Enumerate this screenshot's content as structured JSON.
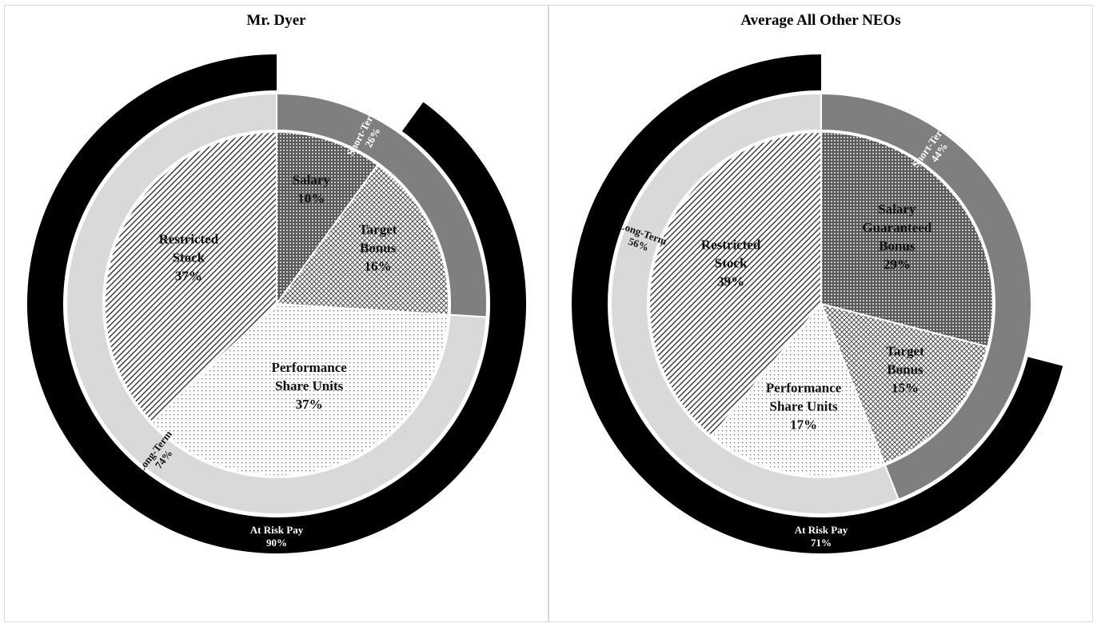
{
  "colors": {
    "at_risk": "#000000",
    "short_term": "#7f7f7f",
    "long_term": "#d9d9d9",
    "separator": "#ffffff"
  },
  "chart_data": [
    {
      "type": "pie",
      "title": "Mr. Dyer",
      "slices": [
        {
          "label_lines": [
            "Salary",
            "10%"
          ],
          "value": 10,
          "pattern": "dense-dots"
        },
        {
          "label_lines": [
            "Target",
            "Bonus",
            "16%"
          ],
          "value": 16,
          "pattern": "crosshatch"
        },
        {
          "label_lines": [
            "Performance",
            "Share Units",
            "37%"
          ],
          "value": 37,
          "pattern": "light-dots"
        },
        {
          "label_lines": [
            "Restricted",
            "Stock",
            "37%"
          ],
          "value": 37,
          "pattern": "diagonal"
        }
      ],
      "rings": [
        {
          "label_lines": [
            "Short-Term",
            "26%"
          ],
          "value": 26,
          "group": "short_term"
        },
        {
          "label_lines": [
            "Long-Term",
            "74%"
          ],
          "value": 74,
          "group": "long_term"
        }
      ],
      "at_risk": {
        "label_lines": [
          "At Risk Pay",
          "90%"
        ],
        "value": 90
      }
    },
    {
      "type": "pie",
      "title": "Average All Other NEOs",
      "slices": [
        {
          "label_lines": [
            "Salary",
            "Guaranteed",
            "Bonus",
            "29%"
          ],
          "value": 29,
          "pattern": "dense-dots"
        },
        {
          "label_lines": [
            "Target",
            "Bonus",
            "15%"
          ],
          "value": 15,
          "pattern": "crosshatch"
        },
        {
          "label_lines": [
            "Performance",
            "Share Units",
            "17%"
          ],
          "value": 17,
          "pattern": "light-dots"
        },
        {
          "label_lines": [
            "Restricted",
            "Stock",
            "39%"
          ],
          "value": 39,
          "pattern": "diagonal"
        }
      ],
      "rings": [
        {
          "label_lines": [
            "Short-Term",
            "44%"
          ],
          "value": 44,
          "group": "short_term"
        },
        {
          "label_lines": [
            "Long-Term",
            "56%"
          ],
          "value": 56,
          "group": "long_term"
        }
      ],
      "at_risk": {
        "label_lines": [
          "At Risk Pay",
          "71%"
        ],
        "value": 71
      }
    }
  ]
}
